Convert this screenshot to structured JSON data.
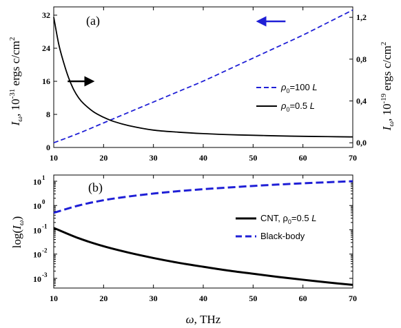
{
  "chart_data": [
    {
      "type": "line",
      "panel_label": "(a)",
      "xlabel": "ω, THz",
      "xlim": [
        10,
        70
      ],
      "x_ticks": [
        10,
        20,
        30,
        40,
        50,
        60,
        70
      ],
      "ylabel_left": {
        "symbol": "I",
        "sub": "ω",
        "sep": ", 10",
        "exp": "-31",
        "unit": " ergs c/cm",
        "unit_exp": "2"
      },
      "ylim_left": [
        0,
        34
      ],
      "y_ticks_left": [
        0,
        8,
        16,
        24,
        32
      ],
      "ylabel_right": {
        "symbol": "I",
        "sub": "ω",
        "sep": ", 10",
        "exp": "-19",
        "unit": " ergs c/cm",
        "unit_exp": "2"
      },
      "ylim_right": [
        -0.045,
        1.3
      ],
      "y_ticks_right": [
        "0,0",
        "0,4",
        "0,8",
        "1,2"
      ],
      "y_ticks_right_values": [
        0.0,
        0.4,
        0.8,
        1.2
      ],
      "series": [
        {
          "legend": {
            "pre": "ρ",
            "sub": "0",
            "post": "=100 ",
            "italic": "L"
          },
          "axis": "right",
          "style": "dashed",
          "color": "#1f1fd6",
          "x": [
            10,
            15,
            20,
            25,
            30,
            35,
            40,
            45,
            50,
            55,
            60,
            65,
            70
          ],
          "y": [
            0.0,
            0.09,
            0.19,
            0.29,
            0.39,
            0.49,
            0.59,
            0.7,
            0.81,
            0.92,
            1.03,
            1.15,
            1.27
          ]
        },
        {
          "legend": {
            "pre": "ρ",
            "sub": "0",
            "post": "=0.5 ",
            "italic": "L"
          },
          "axis": "left",
          "style": "solid",
          "color": "#000000",
          "x": [
            10,
            11,
            12,
            13,
            14,
            15,
            16,
            18,
            20,
            22,
            25,
            30,
            35,
            40,
            45,
            50,
            55,
            60,
            65,
            70
          ],
          "y": [
            31.5,
            25.0,
            20.5,
            16.8,
            14.0,
            12.0,
            10.6,
            8.6,
            7.3,
            6.3,
            5.3,
            4.2,
            3.7,
            3.35,
            3.1,
            2.95,
            2.8,
            2.7,
            2.62,
            2.55
          ]
        }
      ],
      "arrows": [
        {
          "direction": "right",
          "color": "#000000",
          "x_from": 12.8,
          "x_to": 17.8,
          "y_left": 16.0
        },
        {
          "direction": "left",
          "color": "#1f1fd6",
          "x_from": 56.5,
          "x_to": 51.0,
          "y_left": 30.5
        }
      ]
    },
    {
      "type": "line",
      "panel_label": "(b)",
      "xlabel": "ω, THz",
      "xlim": [
        10,
        70
      ],
      "x_ticks": [
        10,
        20,
        30,
        40,
        50,
        60,
        70
      ],
      "ylabel": {
        "pre": "log(",
        "symbol": "I",
        "sub": "ω",
        "post": ")"
      },
      "yscale": "log",
      "ylim": [
        0.0004,
        18
      ],
      "y_ticks": [
        {
          "base": "10",
          "exp": "1",
          "value": 10
        },
        {
          "base": "10",
          "exp": "0",
          "value": 1
        },
        {
          "base": "10",
          "exp": "-1",
          "value": 0.1
        },
        {
          "base": "10",
          "exp": "-2",
          "value": 0.01
        },
        {
          "base": "10",
          "exp": "-3",
          "value": 0.001
        }
      ],
      "series": [
        {
          "legend": {
            "pre": "CNT, ρ",
            "sub": "0",
            "post": "=0.5 ",
            "italic": "L"
          },
          "style": "solid",
          "color": "#000000",
          "x": [
            10,
            15,
            20,
            25,
            30,
            35,
            40,
            45,
            50,
            55,
            60,
            65,
            70
          ],
          "y": [
            0.12,
            0.045,
            0.021,
            0.0115,
            0.0069,
            0.0044,
            0.003,
            0.0021,
            0.00155,
            0.00115,
            0.00088,
            0.00068,
            0.00054
          ]
        },
        {
          "legend": {
            "pre": "Black-body",
            "sub": "",
            "post": "",
            "italic": ""
          },
          "style": "dashed",
          "color": "#1f1fd6",
          "x": [
            10,
            15,
            20,
            25,
            30,
            35,
            40,
            45,
            50,
            55,
            60,
            65,
            70
          ],
          "y": [
            0.5,
            1.0,
            1.65,
            2.35,
            3.1,
            3.9,
            4.7,
            5.5,
            6.4,
            7.3,
            8.2,
            9.1,
            10.0
          ]
        }
      ]
    }
  ]
}
